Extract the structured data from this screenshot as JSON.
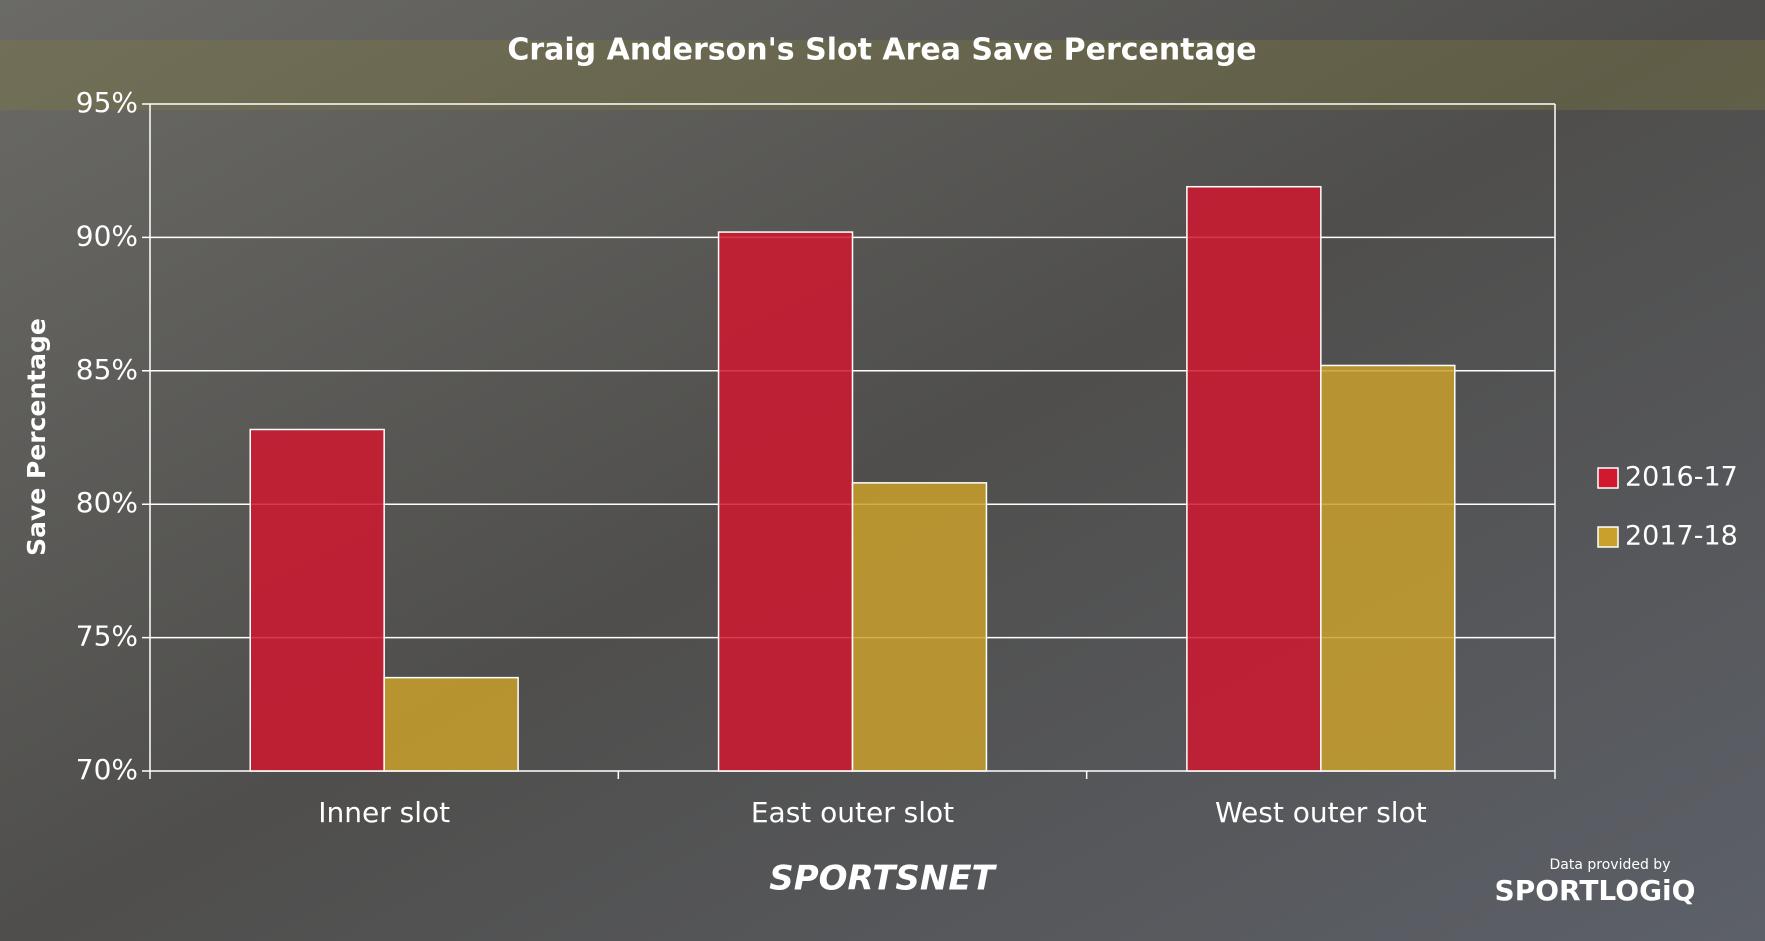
{
  "chart_data": {
    "type": "bar",
    "title": "Craig Anderson's Slot Area Save Percentage",
    "y_label": "Save Percentage",
    "categories": [
      "Inner slot",
      "East outer slot",
      "West outer slot"
    ],
    "series": [
      {
        "name": "2016-17",
        "color": "#d0182f",
        "values": [
          82.8,
          90.2,
          91.9
        ]
      },
      {
        "name": "2017-18",
        "color": "#c9a02c",
        "values": [
          73.5,
          80.8,
          85.2
        ]
      }
    ],
    "ylim": [
      70,
      95
    ],
    "yticks": [
      {
        "value": 70,
        "label": "70%"
      },
      {
        "value": 75,
        "label": "75%"
      },
      {
        "value": 80,
        "label": "80%"
      },
      {
        "value": 85,
        "label": "85%"
      },
      {
        "value": 90,
        "label": "90%"
      },
      {
        "value": 95,
        "label": "95%"
      }
    ],
    "grid": true,
    "legend": "right"
  },
  "footer": {
    "brand": "SPORTSNET",
    "credit": "Data provided by",
    "provider": "SPORTLOGiQ"
  }
}
